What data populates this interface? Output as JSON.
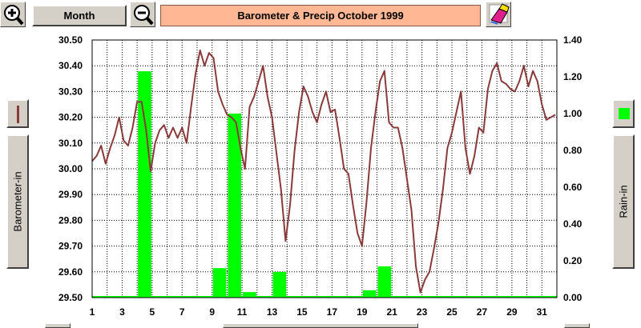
{
  "toolbar": {
    "period_label": "Month",
    "title": "Barometer & Precip   October 1999"
  },
  "left_axis_button": {
    "label": "Barometer-in"
  },
  "right_axis_button": {
    "label": "Rain-in"
  },
  "colors": {
    "barometer_line": "#8b3a3a",
    "rain_bars": "#00ff00",
    "title_bg": "#ffb893",
    "button_face": "#d4d0c8"
  },
  "icons": {
    "zoom_in": "zoom-in-magnifier-icon",
    "zoom_out": "zoom-out-magnifier-icon",
    "clear": "eraser-icon"
  },
  "chart_data": {
    "type": "bar+line",
    "title": "Barometer & Precip   October 1999",
    "grid": true,
    "x_ticks": [
      "1",
      "3",
      "5",
      "7",
      "9",
      "11",
      "13",
      "15",
      "17",
      "19",
      "21",
      "23",
      "25",
      "27",
      "29",
      "31"
    ],
    "xlim": [
      1,
      32
    ],
    "left_axis": {
      "label": "Barometer-in",
      "ylim": [
        29.5,
        30.5
      ],
      "ticks": [
        "30.50",
        "30.40",
        "30.30",
        "30.20",
        "30.10",
        "30.00",
        "29.90",
        "29.80",
        "29.70",
        "29.60",
        "29.50"
      ]
    },
    "right_axis": {
      "label": "Rain-in",
      "ylim": [
        0,
        1.4
      ],
      "ticks": [
        "1.40",
        "1.20",
        "1.00",
        "0.80",
        "0.60",
        "0.40",
        "0.20",
        "0.00"
      ]
    },
    "series": [
      {
        "name": "Barometer-in",
        "kind": "line",
        "axis": "left",
        "x": [
          1.0,
          1.3,
          1.6,
          1.9,
          2.2,
          2.5,
          2.8,
          3.1,
          3.4,
          3.7,
          4.0,
          4.3,
          4.6,
          4.9,
          5.2,
          5.5,
          5.8,
          6.1,
          6.4,
          6.7,
          7.0,
          7.3,
          7.6,
          7.9,
          8.2,
          8.5,
          8.8,
          9.1,
          9.4,
          9.7,
          10.0,
          10.3,
          10.6,
          10.9,
          11.2,
          11.5,
          11.8,
          12.1,
          12.4,
          12.7,
          13.0,
          13.3,
          13.6,
          13.9,
          14.2,
          14.5,
          14.8,
          15.1,
          15.4,
          15.7,
          16.0,
          16.3,
          16.6,
          16.9,
          17.2,
          17.5,
          17.8,
          18.1,
          18.4,
          18.7,
          19.0,
          19.3,
          19.6,
          19.9,
          20.2,
          20.5,
          20.8,
          21.1,
          21.4,
          21.7,
          22.0,
          22.3,
          22.6,
          22.9,
          23.2,
          23.5,
          23.8,
          24.1,
          24.4,
          24.7,
          25.0,
          25.3,
          25.6,
          25.9,
          26.2,
          26.5,
          26.8,
          27.1,
          27.4,
          27.7,
          28.0,
          28.3,
          28.6,
          28.9,
          29.2,
          29.5,
          29.8,
          30.1,
          30.4,
          30.7,
          31.0,
          31.3,
          31.6,
          31.9
        ],
        "values": [
          30.03,
          30.05,
          30.09,
          30.02,
          30.08,
          30.13,
          30.2,
          30.11,
          30.09,
          30.16,
          30.26,
          30.26,
          30.15,
          29.99,
          30.1,
          30.15,
          30.17,
          30.12,
          30.16,
          30.12,
          30.16,
          30.1,
          30.24,
          30.37,
          30.46,
          30.4,
          30.45,
          30.43,
          30.3,
          30.25,
          30.21,
          30.2,
          30.18,
          30.08,
          30.0,
          30.24,
          30.28,
          30.34,
          30.4,
          30.28,
          30.2,
          30.06,
          29.92,
          29.72,
          29.86,
          30.07,
          30.22,
          30.32,
          30.28,
          30.22,
          30.18,
          30.25,
          30.3,
          30.22,
          30.23,
          30.12,
          30.0,
          29.98,
          29.86,
          29.75,
          29.7,
          29.87,
          30.08,
          30.22,
          30.34,
          30.38,
          30.18,
          30.16,
          30.16,
          30.08,
          29.96,
          29.84,
          29.62,
          29.52,
          29.57,
          29.6,
          29.69,
          29.79,
          29.92,
          30.08,
          30.14,
          30.22,
          30.3,
          30.08,
          29.98,
          30.05,
          30.16,
          30.14,
          30.31,
          30.38,
          30.41,
          30.34,
          30.33,
          30.31,
          30.3,
          30.34,
          30.4,
          30.32,
          30.38,
          30.34,
          30.25,
          30.19,
          30.2,
          30.21
        ]
      },
      {
        "name": "Rain-in",
        "kind": "bar",
        "axis": "right",
        "x": [
          4.5,
          9.5,
          10.5,
          11.5,
          13.5,
          19.5,
          20.5
        ],
        "values": [
          1.23,
          0.16,
          1.0,
          0.03,
          0.14,
          0.04,
          0.17
        ]
      }
    ]
  }
}
